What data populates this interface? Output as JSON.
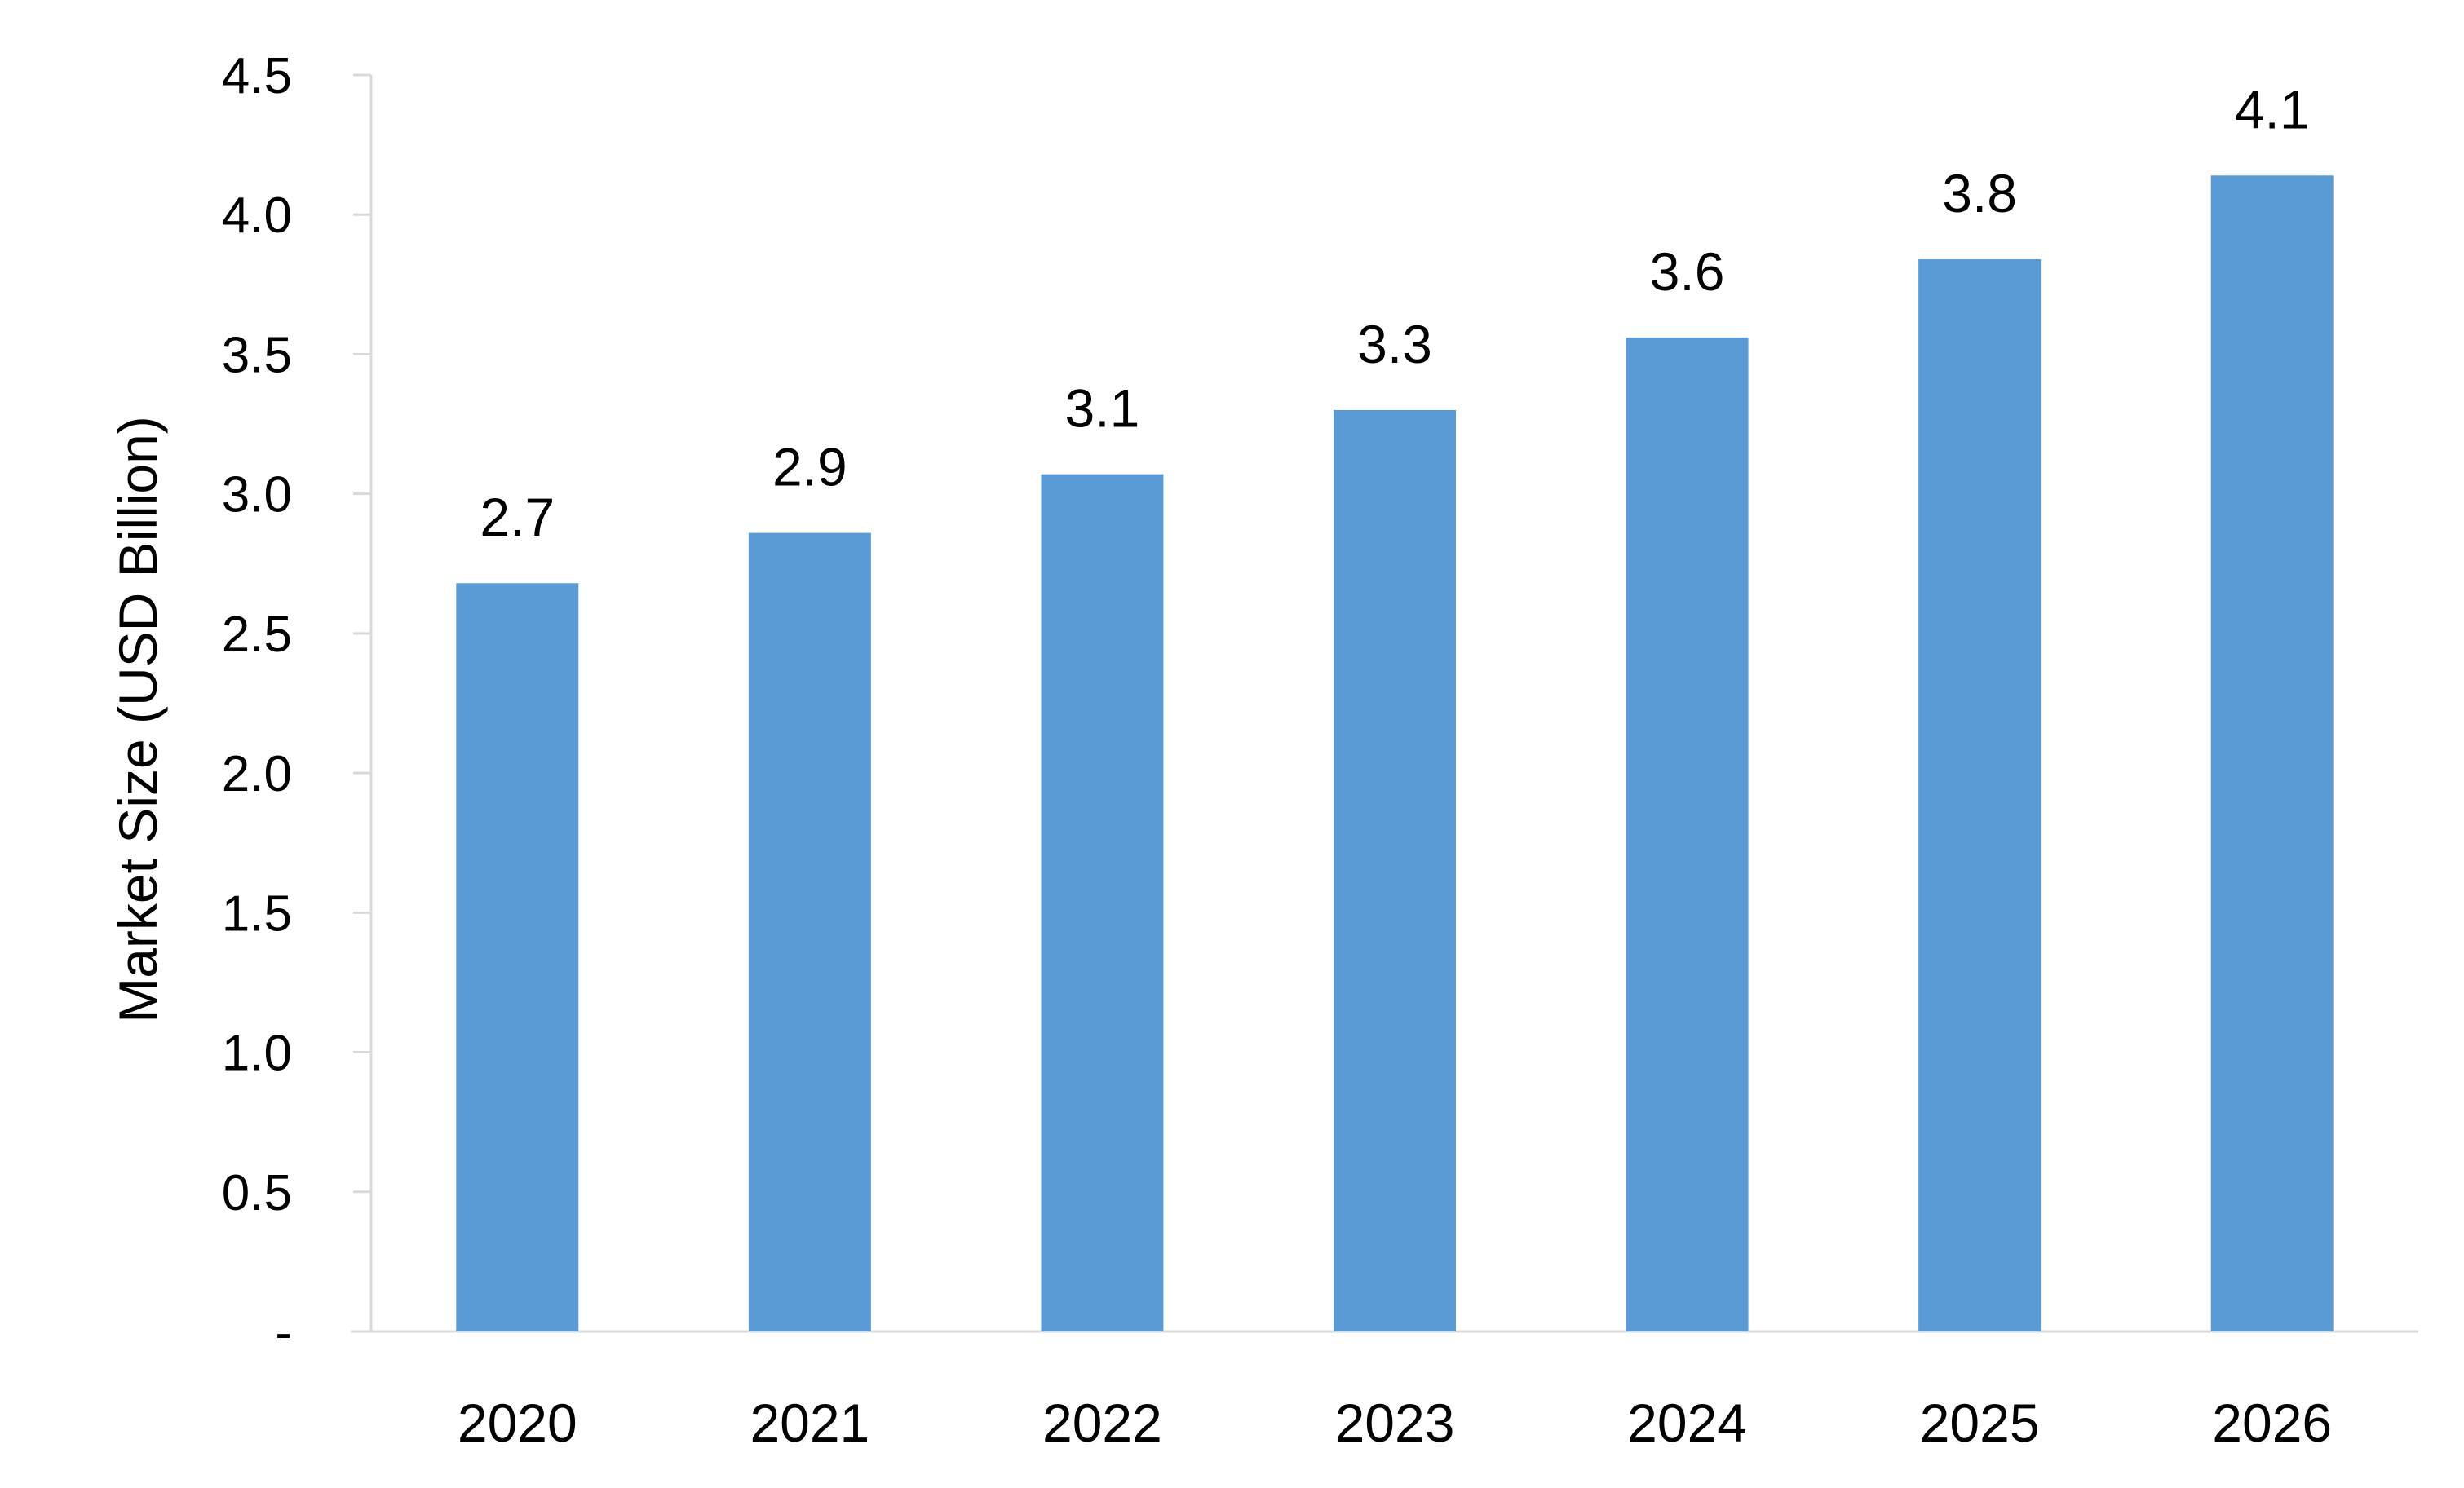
{
  "chart_data": {
    "type": "bar",
    "categories": [
      "2020",
      "2021",
      "2022",
      "2023",
      "2024",
      "2025",
      "2026"
    ],
    "values": [
      2.68,
      2.86,
      3.07,
      3.3,
      3.56,
      3.84,
      4.14
    ],
    "data_labels": [
      "2.7",
      "2.9",
      "3.1",
      "3.3",
      "3.6",
      "3.8",
      "4.1"
    ],
    "ylabel": "Market Size (USD Billion)",
    "xlabel": "",
    "ylim": [
      0,
      4.5
    ],
    "yticks": [
      0,
      0.5,
      1.0,
      1.5,
      2.0,
      2.5,
      3.0,
      3.5,
      4.0,
      4.5
    ],
    "ytick_labels": [
      "-",
      "0.5",
      "1.0",
      "1.5",
      "2.0",
      "2.5",
      "3.0",
      "3.5",
      "4.0",
      "4.5"
    ],
    "bar_color": "#5b9bd5",
    "grid": false,
    "legend": "none"
  }
}
